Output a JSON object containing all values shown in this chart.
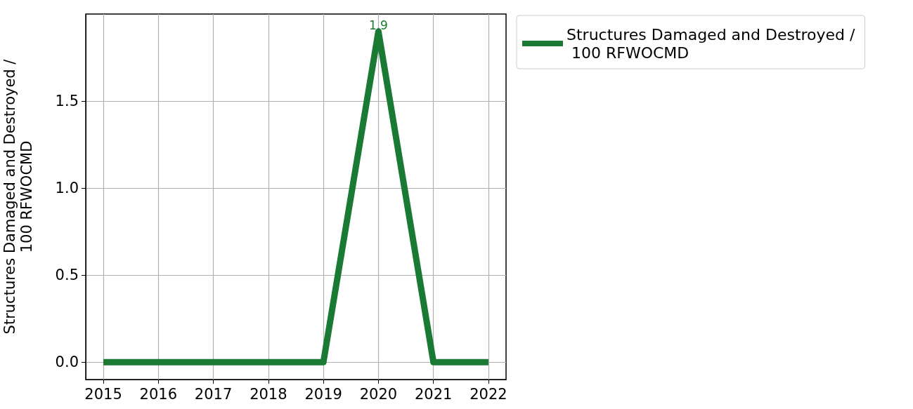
{
  "chart_data": {
    "type": "line",
    "ylabel": "Structures Damaged and Destroyed /\n100 RFWOCMD",
    "x": [
      2015,
      2016,
      2017,
      2018,
      2019,
      2020,
      2021,
      2022
    ],
    "series": [
      {
        "name": "Structures Damaged and Destroyed /\n 100 RFWOCMD",
        "color": "#1a7a33",
        "values": [
          0,
          0,
          0,
          0,
          0,
          1.9,
          0,
          0
        ],
        "value_labels": [
          null,
          null,
          null,
          null,
          null,
          "1.9",
          null,
          null
        ]
      }
    ],
    "xlim": [
      2014.68,
      2022.32
    ],
    "xticks": [
      2015,
      2016,
      2017,
      2018,
      2019,
      2020,
      2021,
      2022
    ],
    "ylim": [
      -0.1,
      2.0
    ],
    "yticks": [
      {
        "value": 0,
        "label": "0.0"
      },
      {
        "value": 0.5,
        "label": "0.5"
      },
      {
        "value": 1,
        "label": "1.0"
      },
      {
        "value": 1.5,
        "label": "1.5"
      }
    ],
    "grid": true,
    "legend": "top right",
    "marker": "none",
    "line_style": "solid"
  }
}
